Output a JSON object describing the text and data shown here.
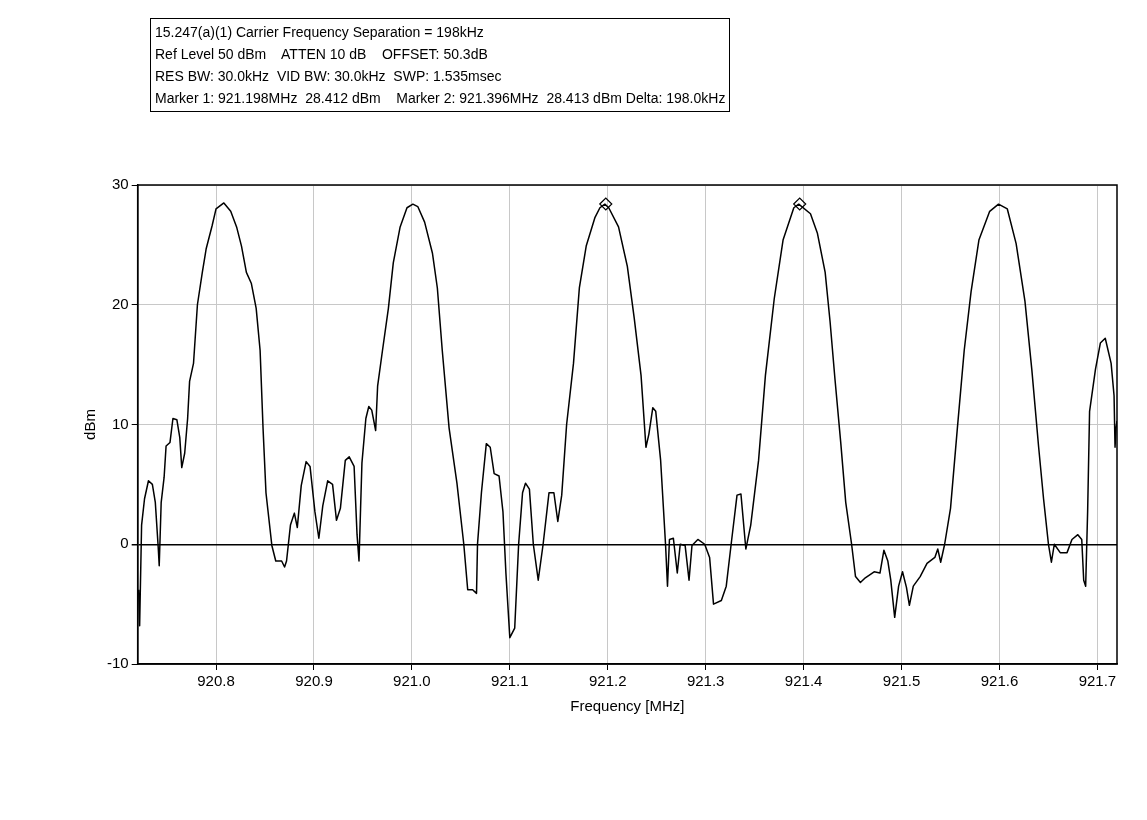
{
  "chart_data": {
    "type": "line",
    "xlabel": "Frequency [MHz]",
    "ylabel": "dBm",
    "annotations": [
      "15.247(a)(1) Carrier Frequency Separation = 198kHz",
      "Ref Level 50 dBm    ATTEN 10 dB    OFFSET: 50.3dB",
      "RES BW: 30.0kHz  VID BW: 30.0kHz  SWP: 1.535msec",
      "Marker 1: 921.198MHz  28.412 dBm    Marker 2: 921.396MHz  28.413 dBm Delta: 198.0kHz"
    ],
    "xlim": [
      920.72,
      921.72
    ],
    "xticks": [
      {
        "value": 920.8,
        "label": "920.8"
      },
      {
        "value": 920.9,
        "label": "920.9"
      },
      {
        "value": 921,
        "label": "921.0"
      },
      {
        "value": 921.1,
        "label": "921.1"
      },
      {
        "value": 921.2,
        "label": "921.2"
      },
      {
        "value": 921.3,
        "label": "921.3"
      },
      {
        "value": 921.4,
        "label": "921.4"
      },
      {
        "value": 921.5,
        "label": "921.5"
      },
      {
        "value": 921.6,
        "label": "921.6"
      },
      {
        "value": 921.7,
        "label": "921.7"
      }
    ],
    "ylim": [
      -10,
      30
    ],
    "yticks": [
      -10,
      0,
      10,
      20,
      30
    ],
    "grid": true,
    "legend": false,
    "marker": "none",
    "line_style": "solid",
    "series": [
      {
        "color": "#000000",
        "x": [
          920.721,
          920.722,
          920.724,
          920.727,
          920.731,
          920.735,
          920.738,
          920.741,
          920.742,
          920.744,
          920.747,
          920.749,
          920.753,
          920.756,
          920.76,
          920.763,
          920.765,
          920.768,
          920.771,
          920.773,
          920.777,
          920.781,
          920.786,
          920.79,
          920.796,
          920.8,
          920.808,
          920.815,
          920.821,
          920.826,
          920.831,
          920.836,
          920.841,
          920.845,
          920.848,
          920.851,
          920.857,
          920.861,
          920.867,
          920.87,
          920.872,
          920.876,
          920.88,
          920.883,
          920.887,
          920.892,
          920.896,
          920.901,
          920.905,
          920.909,
          920.914,
          920.919,
          920.923,
          920.927,
          920.932,
          920.936,
          920.941,
          920.944,
          920.946,
          920.949,
          920.953,
          920.956,
          920.959,
          920.963,
          920.965,
          920.97,
          920.976,
          920.981,
          920.988,
          920.995,
          921.001,
          921.006,
          921.013,
          921.021,
          921.026,
          921.031,
          921.038,
          921.046,
          921.053,
          921.057,
          921.062,
          921.066,
          921.067,
          921.071,
          921.076,
          921.08,
          921.084,
          921.089,
          921.093,
          921.096,
          921.1,
          921.105,
          921.109,
          921.113,
          921.116,
          921.12,
          921.124,
          921.129,
          921.134,
          921.14,
          921.145,
          921.149,
          921.153,
          921.158,
          921.165,
          921.171,
          921.178,
          921.187,
          921.192,
          921.197,
          921.201,
          921.211,
          921.22,
          921.227,
          921.234,
          921.239,
          921.242,
          921.246,
          921.249,
          921.254,
          921.259,
          921.261,
          921.263,
          921.267,
          921.271,
          921.274,
          921.279,
          921.283,
          921.286,
          921.292,
          921.299,
          921.304,
          921.308,
          921.316,
          921.321,
          921.326,
          921.332,
          921.336,
          921.341,
          921.346,
          921.354,
          921.361,
          921.37,
          921.379,
          921.39,
          921.395,
          921.407,
          921.414,
          921.422,
          921.427,
          921.432,
          921.438,
          921.443,
          921.449,
          921.453,
          921.458,
          921.463,
          921.472,
          921.478,
          921.482,
          921.486,
          921.489,
          921.493,
          921.497,
          921.501,
          921.505,
          921.508,
          921.512,
          921.519,
          921.526,
          921.534,
          921.537,
          921.54,
          921.544,
          921.55,
          921.557,
          921.564,
          921.571,
          921.579,
          921.59,
          921.599,
          921.608,
          921.617,
          921.626,
          921.633,
          921.64,
          921.645,
          921.65,
          921.653,
          921.656,
          921.662,
          921.669,
          921.674,
          921.68,
          921.684,
          921.686,
          921.688,
          921.69,
          921.692,
          921.698,
          921.703,
          921.708,
          921.714,
          921.717,
          921.718,
          921.719,
          921.72
        ],
        "values": [
          -3.8,
          -6.8,
          1.6,
          3.8,
          5.3,
          5.0,
          3.5,
          -0.3,
          -1.8,
          3.5,
          5.6,
          8.2,
          8.5,
          10.5,
          10.4,
          8.9,
          6.4,
          7.6,
          10.5,
          13.6,
          15.1,
          20.0,
          22.7,
          24.7,
          26.6,
          28.0,
          28.5,
          27.8,
          26.5,
          24.9,
          22.7,
          21.8,
          19.7,
          16.2,
          9.7,
          4.3,
          -0.1,
          -1.4,
          -1.4,
          -1.9,
          -1.4,
          1.6,
          2.6,
          1.4,
          4.9,
          6.9,
          6.5,
          2.7,
          0.5,
          3.2,
          5.3,
          5.0,
          2.0,
          3.0,
          7.0,
          7.3,
          6.5,
          0.8,
          -1.4,
          6.8,
          10.5,
          11.5,
          11.2,
          9.5,
          13.2,
          16.2,
          19.7,
          23.5,
          26.5,
          28.1,
          28.4,
          28.2,
          26.9,
          24.3,
          21.4,
          16.2,
          9.7,
          5.1,
          0.0,
          -3.8,
          -3.8,
          -4.1,
          0.0,
          4.3,
          8.4,
          8.1,
          5.9,
          5.7,
          2.7,
          -2.4,
          -7.8,
          -7.0,
          0.0,
          4.3,
          5.1,
          4.6,
          0.0,
          -3.0,
          0.0,
          4.3,
          4.3,
          1.9,
          4.1,
          10.0,
          15.1,
          21.4,
          24.9,
          27.3,
          28.1,
          28.4,
          28.1,
          26.5,
          23.2,
          18.9,
          14.1,
          8.1,
          9.2,
          11.4,
          11.1,
          7.0,
          0.0,
          -3.5,
          0.4,
          0.5,
          -2.4,
          0.0,
          -0.1,
          -3.0,
          -0.1,
          0.4,
          0.0,
          -1.1,
          -5.0,
          -4.7,
          -3.5,
          0.0,
          4.1,
          4.2,
          -0.4,
          1.6,
          7.0,
          14.1,
          20.5,
          25.4,
          28.1,
          28.4,
          27.6,
          26.0,
          22.7,
          18.6,
          13.8,
          8.4,
          3.5,
          0.0,
          -2.7,
          -3.2,
          -2.8,
          -2.3,
          -2.4,
          -0.5,
          -1.4,
          -3.0,
          -6.1,
          -3.5,
          -2.3,
          -3.6,
          -5.1,
          -3.5,
          -2.7,
          -1.6,
          -1.1,
          -0.4,
          -1.5,
          0.0,
          3.0,
          9.7,
          16.2,
          21.1,
          25.4,
          27.8,
          28.4,
          28.0,
          25.1,
          20.3,
          14.6,
          8.1,
          3.8,
          0.0,
          -1.5,
          0.0,
          -0.7,
          -0.7,
          0.4,
          0.8,
          0.4,
          -3.0,
          -3.5,
          2.7,
          11.1,
          14.6,
          16.8,
          17.2,
          15.1,
          12.4,
          8.1,
          9.7,
          10.3
        ]
      },
      {
        "type": "scatter",
        "marker": "diamond",
        "color": "#000000",
        "x": [
          921.198,
          921.396
        ],
        "values": [
          28.412,
          28.413
        ]
      }
    ]
  }
}
